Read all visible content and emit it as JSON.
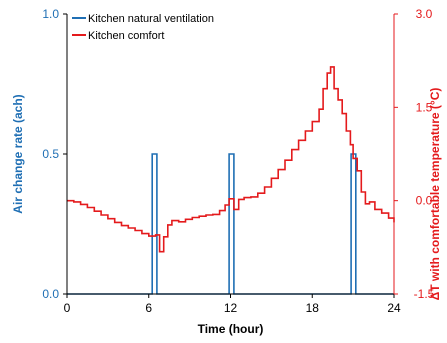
{
  "chart_data": {
    "type": "line",
    "title": "",
    "xlabel": "Time (hour)",
    "ylabel": "Air change rate (ach)",
    "ylabel_right": "ΔT with comfortable temperature (°C)",
    "xlim": [
      0,
      24
    ],
    "ylim": [
      0,
      1
    ],
    "ylim_right": [
      -1.5,
      3
    ],
    "x_ticks": [
      0,
      6,
      12,
      18,
      24
    ],
    "x_tick_labels": [
      "0",
      "6",
      "12",
      "18",
      "24"
    ],
    "y_ticks": [
      0,
      0.5,
      1
    ],
    "y_tick_labels": [
      "0.0",
      "0.5",
      "1.0"
    ],
    "y_right_ticks": [
      -1.5,
      0,
      1.5,
      3
    ],
    "y_right_tick_labels": [
      "-1.5",
      "0.0",
      "1.5",
      "3.0"
    ],
    "grid": false,
    "legend_position": "top-left",
    "series": [
      {
        "name": "Kitchen natural ventilation",
        "axis": "left",
        "color": "#1f6fb4",
        "step": true,
        "points": [
          [
            0,
            0
          ],
          [
            6.25,
            0
          ],
          [
            6.25,
            0.5
          ],
          [
            6.6,
            0.5
          ],
          [
            6.6,
            0
          ],
          [
            11.9,
            0
          ],
          [
            11.9,
            0.5
          ],
          [
            12.25,
            0.5
          ],
          [
            12.25,
            0
          ],
          [
            20.85,
            0
          ],
          [
            20.85,
            0.5
          ],
          [
            21.2,
            0.5
          ],
          [
            21.2,
            0
          ],
          [
            24,
            0
          ]
        ]
      },
      {
        "name": "Kitchen comfort",
        "axis": "right",
        "color": "#e41a1c",
        "step": true,
        "points": [
          [
            0,
            0
          ],
          [
            0.5,
            -0.02
          ],
          [
            1,
            -0.06
          ],
          [
            1.5,
            -0.11
          ],
          [
            2,
            -0.17
          ],
          [
            2.5,
            -0.23
          ],
          [
            3,
            -0.29
          ],
          [
            3.5,
            -0.35
          ],
          [
            4,
            -0.4
          ],
          [
            4.5,
            -0.44
          ],
          [
            5,
            -0.48
          ],
          [
            5.5,
            -0.53
          ],
          [
            6,
            -0.57
          ],
          [
            6.5,
            -0.55
          ],
          [
            6.8,
            -0.82
          ],
          [
            7.1,
            -0.58
          ],
          [
            7.4,
            -0.39
          ],
          [
            7.7,
            -0.32
          ],
          [
            8.2,
            -0.34
          ],
          [
            8.7,
            -0.3
          ],
          [
            9.2,
            -0.27
          ],
          [
            9.7,
            -0.25
          ],
          [
            10.2,
            -0.23
          ],
          [
            10.7,
            -0.22
          ],
          [
            11.2,
            -0.16
          ],
          [
            11.6,
            -0.07
          ],
          [
            11.9,
            0.03
          ],
          [
            12.25,
            -0.14
          ],
          [
            12.6,
            0.02
          ],
          [
            13,
            0.05
          ],
          [
            13.5,
            0.06
          ],
          [
            14,
            0.12
          ],
          [
            14.5,
            0.22
          ],
          [
            15,
            0.36
          ],
          [
            15.5,
            0.5
          ],
          [
            16,
            0.65
          ],
          [
            16.5,
            0.82
          ],
          [
            17,
            0.97
          ],
          [
            17.5,
            1.12
          ],
          [
            18,
            1.27
          ],
          [
            18.5,
            1.47
          ],
          [
            18.8,
            1.8
          ],
          [
            19.1,
            2.05
          ],
          [
            19.35,
            2.15
          ],
          [
            19.6,
            1.8
          ],
          [
            19.9,
            1.62
          ],
          [
            20.2,
            1.4
          ],
          [
            20.5,
            1.12
          ],
          [
            20.8,
            0.9
          ],
          [
            21,
            0.68
          ],
          [
            21.3,
            0.48
          ],
          [
            21.6,
            0.14
          ],
          [
            21.9,
            -0.05
          ],
          [
            22.2,
            -0.02
          ],
          [
            22.6,
            -0.14
          ],
          [
            23.1,
            -0.2
          ],
          [
            23.6,
            -0.28
          ],
          [
            24,
            -0.35
          ]
        ]
      }
    ]
  }
}
